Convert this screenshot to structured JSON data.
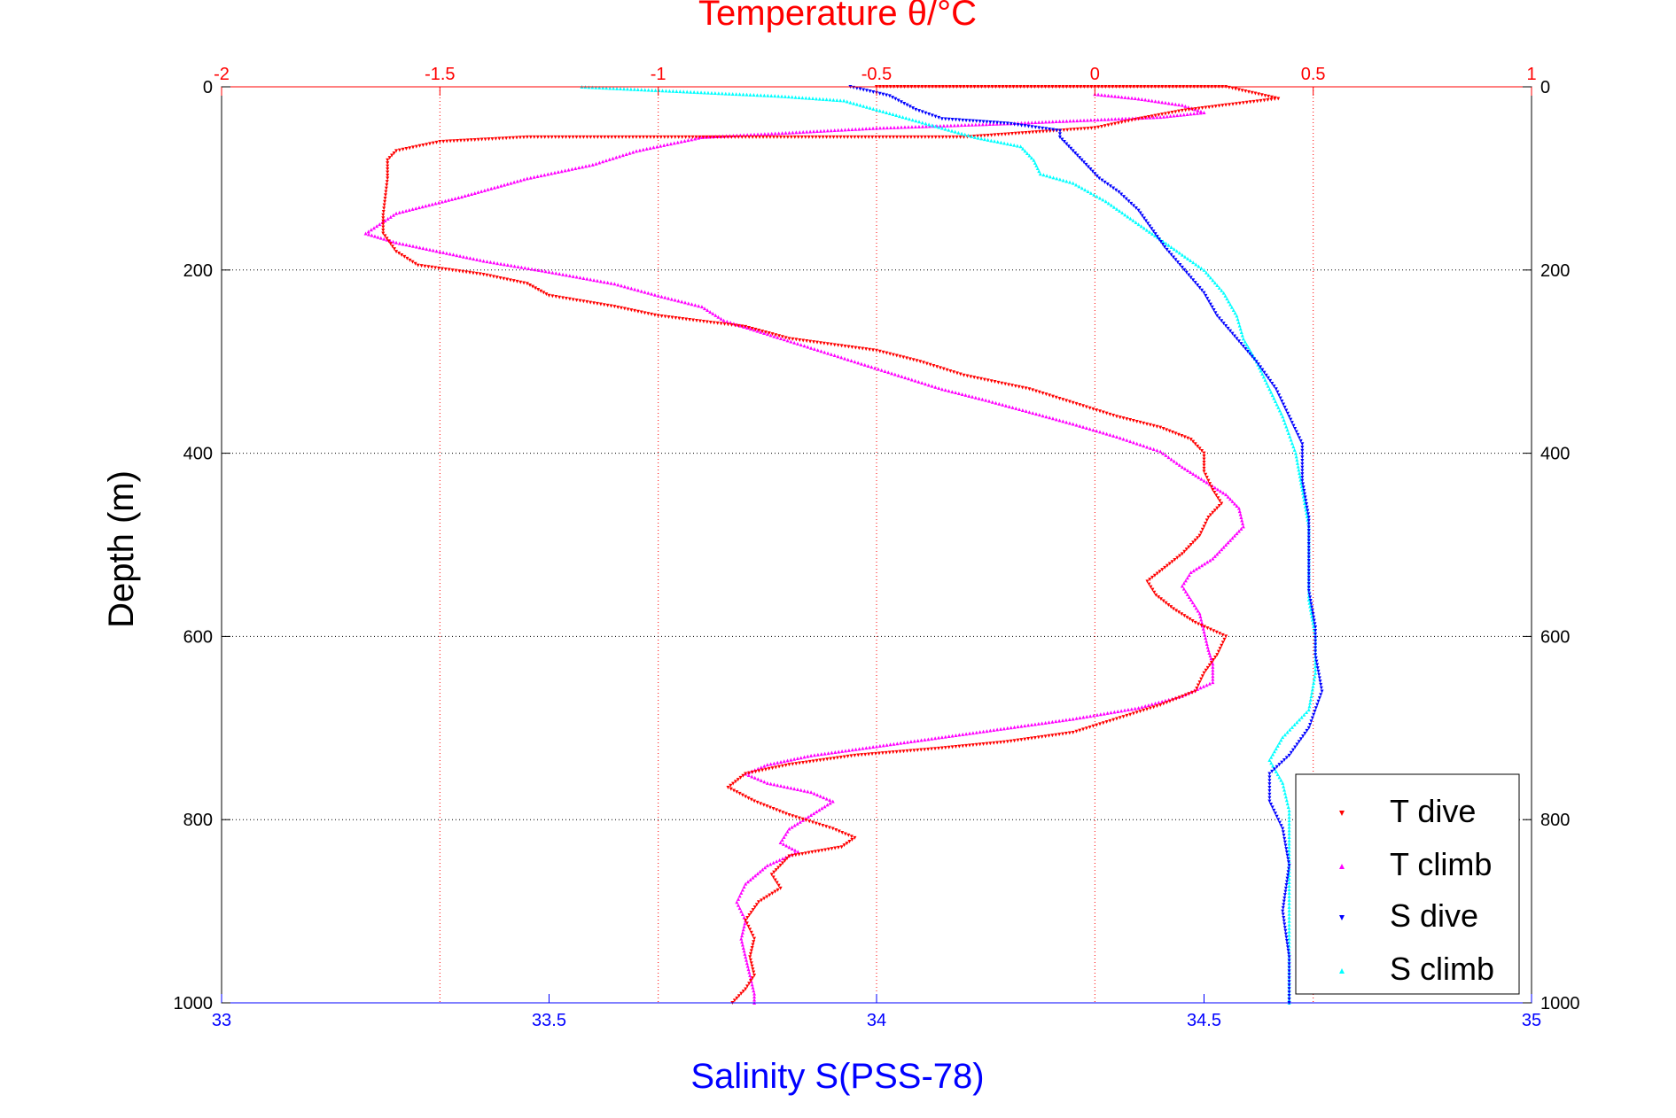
{
  "chart_data": {
    "type": "scatter",
    "title": "Temperature θ/°C",
    "xlabel": "Salinity S(PSS-78)",
    "ylabel": "Depth (m)",
    "x_bottom": {
      "label": "Salinity S(PSS-78)",
      "range": [
        33,
        35
      ],
      "ticks": [
        "33",
        "33.5",
        "34",
        "34.5",
        "35"
      ],
      "color": "#0000ff"
    },
    "x_top": {
      "label": "Temperature θ/°C",
      "range": [
        -2,
        1
      ],
      "ticks": [
        "-2",
        "-1.5",
        "-1",
        "-0.5",
        "0",
        "0.5",
        "1"
      ],
      "color": "#ff0000"
    },
    "y": {
      "label": "Depth (m)",
      "range": [
        1000,
        0
      ],
      "ticks": [
        "0",
        "200",
        "400",
        "600",
        "800",
        "1000"
      ],
      "reversed": true
    },
    "grid": true,
    "legend_position": "bottom-right",
    "series": [
      {
        "name": "T dive",
        "axis": "temperature",
        "color": "#ff0000",
        "marker": "triangle-down",
        "points": [
          [
            -0.5,
            0
          ],
          [
            -0.3,
            0
          ],
          [
            0.3,
            0
          ],
          [
            0.42,
            13
          ],
          [
            0.3,
            20
          ],
          [
            0.2,
            26
          ],
          [
            0.1,
            35
          ],
          [
            0.0,
            45
          ],
          [
            -0.3,
            55
          ],
          [
            -1.3,
            55
          ],
          [
            -1.5,
            60
          ],
          [
            -1.6,
            70
          ],
          [
            -1.62,
            80
          ],
          [
            -1.62,
            100
          ],
          [
            -1.63,
            140
          ],
          [
            -1.63,
            160
          ],
          [
            -1.6,
            180
          ],
          [
            -1.55,
            195
          ],
          [
            -1.4,
            205
          ],
          [
            -1.3,
            215
          ],
          [
            -1.25,
            228
          ],
          [
            -1.1,
            240
          ],
          [
            -1.0,
            250
          ],
          [
            -0.8,
            262
          ],
          [
            -0.7,
            275
          ],
          [
            -0.5,
            288
          ],
          [
            -0.4,
            300
          ],
          [
            -0.3,
            315
          ],
          [
            -0.15,
            330
          ],
          [
            -0.05,
            345
          ],
          [
            0.05,
            360
          ],
          [
            0.15,
            372
          ],
          [
            0.22,
            385
          ],
          [
            0.25,
            400
          ],
          [
            0.25,
            420
          ],
          [
            0.27,
            440
          ],
          [
            0.29,
            455
          ],
          [
            0.26,
            470
          ],
          [
            0.24,
            490
          ],
          [
            0.2,
            510
          ],
          [
            0.16,
            525
          ],
          [
            0.12,
            540
          ],
          [
            0.14,
            555
          ],
          [
            0.18,
            570
          ],
          [
            0.23,
            585
          ],
          [
            0.3,
            600
          ],
          [
            0.28,
            620
          ],
          [
            0.25,
            640
          ],
          [
            0.23,
            660
          ],
          [
            0.15,
            675
          ],
          [
            0.05,
            690
          ],
          [
            -0.05,
            705
          ],
          [
            -0.2,
            715
          ],
          [
            -0.35,
            722
          ],
          [
            -0.55,
            730
          ],
          [
            -0.7,
            740
          ],
          [
            -0.8,
            750
          ],
          [
            -0.84,
            765
          ],
          [
            -0.78,
            780
          ],
          [
            -0.7,
            795
          ],
          [
            -0.6,
            810
          ],
          [
            -0.55,
            820
          ],
          [
            -0.58,
            830
          ],
          [
            -0.7,
            840
          ],
          [
            -0.74,
            860
          ],
          [
            -0.72,
            875
          ],
          [
            -0.77,
            890
          ],
          [
            -0.8,
            910
          ],
          [
            -0.78,
            930
          ],
          [
            -0.79,
            950
          ],
          [
            -0.78,
            970
          ],
          [
            -0.8,
            985
          ],
          [
            -0.83,
            1000
          ]
        ]
      },
      {
        "name": "T climb",
        "axis": "temperature",
        "color": "#ff00ff",
        "marker": "triangle-up",
        "points": [
          [
            0.0,
            8
          ],
          [
            0.1,
            13
          ],
          [
            0.2,
            20
          ],
          [
            0.25,
            28
          ],
          [
            0.15,
            33
          ],
          [
            -0.2,
            40
          ],
          [
            -0.5,
            45
          ],
          [
            -0.9,
            55
          ],
          [
            -1.05,
            70
          ],
          [
            -1.15,
            85
          ],
          [
            -1.3,
            100
          ],
          [
            -1.45,
            120
          ],
          [
            -1.6,
            138
          ],
          [
            -1.67,
            160
          ],
          [
            -1.6,
            170
          ],
          [
            -1.5,
            180
          ],
          [
            -1.4,
            190
          ],
          [
            -1.25,
            202
          ],
          [
            -1.1,
            215
          ],
          [
            -1.0,
            228
          ],
          [
            -0.9,
            240
          ],
          [
            -0.85,
            255
          ],
          [
            -0.75,
            270
          ],
          [
            -0.65,
            285
          ],
          [
            -0.55,
            300
          ],
          [
            -0.45,
            315
          ],
          [
            -0.35,
            330
          ],
          [
            -0.25,
            342
          ],
          [
            -0.15,
            355
          ],
          [
            -0.05,
            368
          ],
          [
            0.05,
            382
          ],
          [
            0.15,
            398
          ],
          [
            0.2,
            415
          ],
          [
            0.25,
            430
          ],
          [
            0.3,
            445
          ],
          [
            0.33,
            460
          ],
          [
            0.34,
            480
          ],
          [
            0.3,
            500
          ],
          [
            0.27,
            515
          ],
          [
            0.22,
            530
          ],
          [
            0.2,
            545
          ],
          [
            0.22,
            560
          ],
          [
            0.24,
            575
          ],
          [
            0.25,
            595
          ],
          [
            0.26,
            615
          ],
          [
            0.27,
            630
          ],
          [
            0.27,
            650
          ],
          [
            0.2,
            665
          ],
          [
            0.1,
            678
          ],
          [
            -0.05,
            690
          ],
          [
            -0.2,
            700
          ],
          [
            -0.35,
            710
          ],
          [
            -0.5,
            720
          ],
          [
            -0.65,
            730
          ],
          [
            -0.75,
            740
          ],
          [
            -0.8,
            750
          ],
          [
            -0.75,
            760
          ],
          [
            -0.65,
            770
          ],
          [
            -0.6,
            780
          ],
          [
            -0.65,
            795
          ],
          [
            -0.7,
            810
          ],
          [
            -0.72,
            825
          ],
          [
            -0.68,
            835
          ],
          [
            -0.75,
            850
          ],
          [
            -0.8,
            870
          ],
          [
            -0.82,
            890
          ],
          [
            -0.8,
            910
          ],
          [
            -0.81,
            930
          ],
          [
            -0.8,
            950
          ],
          [
            -0.79,
            970
          ],
          [
            -0.78,
            990
          ],
          [
            -0.78,
            1000
          ]
        ]
      },
      {
        "name": "S dive",
        "axis": "salinity",
        "color": "#0000ff",
        "marker": "triangle-down",
        "points": [
          [
            33.96,
            0
          ],
          [
            34.02,
            10
          ],
          [
            34.06,
            25
          ],
          [
            34.1,
            35
          ],
          [
            34.2,
            40
          ],
          [
            34.28,
            48
          ],
          [
            34.28,
            55
          ],
          [
            34.3,
            70
          ],
          [
            34.32,
            85
          ],
          [
            34.34,
            100
          ],
          [
            34.37,
            115
          ],
          [
            34.4,
            135
          ],
          [
            34.42,
            155
          ],
          [
            34.44,
            175
          ],
          [
            34.47,
            200
          ],
          [
            34.5,
            225
          ],
          [
            34.52,
            250
          ],
          [
            34.55,
            275
          ],
          [
            34.58,
            300
          ],
          [
            34.61,
            330
          ],
          [
            34.63,
            360
          ],
          [
            34.65,
            390
          ],
          [
            34.65,
            430
          ],
          [
            34.66,
            470
          ],
          [
            34.66,
            510
          ],
          [
            34.66,
            550
          ],
          [
            34.67,
            590
          ],
          [
            34.67,
            620
          ],
          [
            34.68,
            660
          ],
          [
            34.66,
            700
          ],
          [
            34.63,
            730
          ],
          [
            34.6,
            750
          ],
          [
            34.6,
            780
          ],
          [
            34.62,
            810
          ],
          [
            34.63,
            850
          ],
          [
            34.62,
            900
          ],
          [
            34.63,
            950
          ],
          [
            34.63,
            1000
          ]
        ]
      },
      {
        "name": "S climb",
        "axis": "salinity",
        "color": "#00ffff",
        "marker": "triangle-up",
        "points": [
          [
            33.55,
            0
          ],
          [
            33.7,
            5
          ],
          [
            33.85,
            10
          ],
          [
            33.95,
            15
          ],
          [
            34.0,
            25
          ],
          [
            34.05,
            35
          ],
          [
            34.1,
            45
          ],
          [
            34.15,
            55
          ],
          [
            34.22,
            65
          ],
          [
            34.24,
            80
          ],
          [
            34.25,
            95
          ],
          [
            34.3,
            105
          ],
          [
            34.35,
            125
          ],
          [
            34.4,
            150
          ],
          [
            34.45,
            175
          ],
          [
            34.5,
            200
          ],
          [
            34.53,
            225
          ],
          [
            34.55,
            250
          ],
          [
            34.56,
            275
          ],
          [
            34.58,
            300
          ],
          [
            34.6,
            330
          ],
          [
            34.62,
            360
          ],
          [
            34.64,
            400
          ],
          [
            34.65,
            440
          ],
          [
            34.66,
            480
          ],
          [
            34.66,
            520
          ],
          [
            34.66,
            560
          ],
          [
            34.67,
            600
          ],
          [
            34.67,
            640
          ],
          [
            34.66,
            680
          ],
          [
            34.62,
            710
          ],
          [
            34.6,
            735
          ],
          [
            34.62,
            760
          ],
          [
            34.63,
            790
          ],
          [
            34.63,
            830
          ],
          [
            34.63,
            880
          ],
          [
            34.63,
            930
          ],
          [
            34.63,
            980
          ],
          [
            34.63,
            1000
          ]
        ]
      }
    ]
  }
}
